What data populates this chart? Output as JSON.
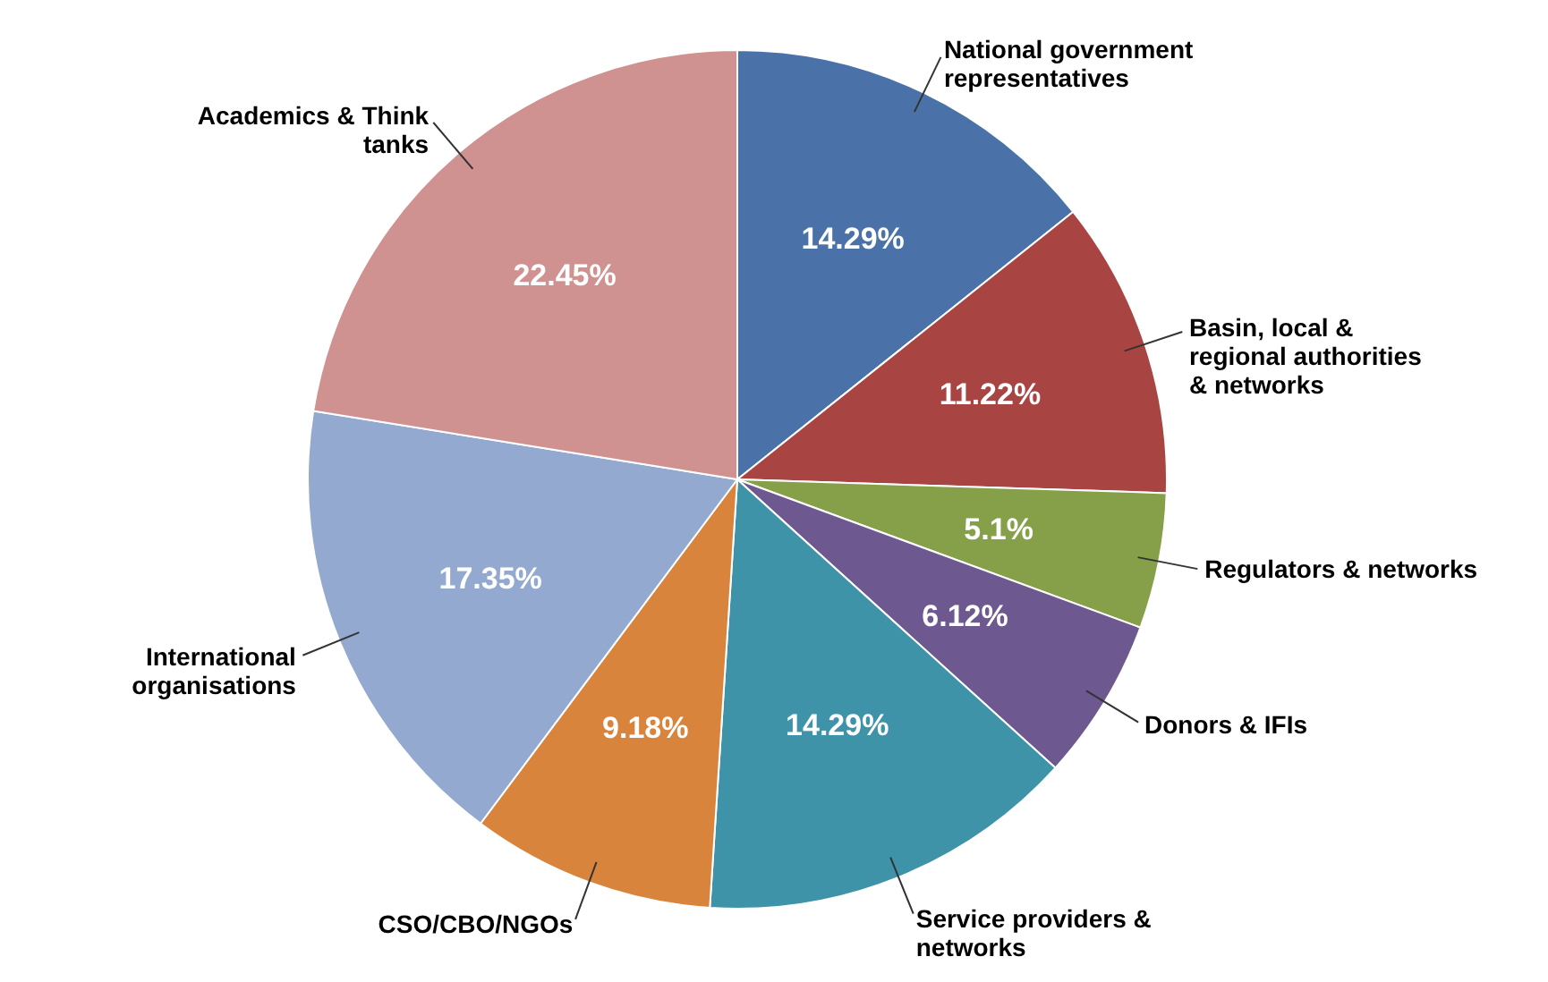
{
  "chart_data": {
    "type": "pie",
    "categories": [
      "National government representatives",
      "Basin, local & regional authorities & networks",
      "Regulators & networks",
      "Donors & IFIs",
      "Service providers & networks",
      "CSO/CBO/NGOs",
      "International organisations",
      "Academics & Think tanks"
    ],
    "values": [
      14.29,
      11.22,
      5.1,
      6.12,
      14.29,
      9.18,
      17.35,
      22.45
    ],
    "colors": [
      "#4a72a8",
      "#a84442",
      "#86a04a",
      "#6e5890",
      "#3e93a8",
      "#d9843c",
      "#93a9cf",
      "#cf9290"
    ],
    "value_labels": [
      "14.29%",
      "11.22%",
      "5.1%",
      "6.12%",
      "14.29%",
      "9.18%",
      "17.35%",
      "22.45%"
    ]
  }
}
